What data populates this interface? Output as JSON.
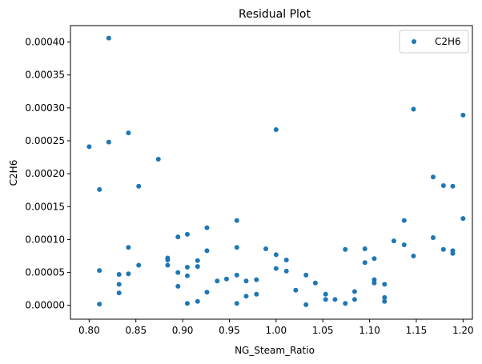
{
  "chart_data": {
    "type": "scatter",
    "title": "Residual Plot",
    "xlabel": "NG_Steam_Ratio",
    "ylabel": "C2H6",
    "xlim": [
      0.78,
      1.21
    ],
    "ylim": [
      -2.1e-05,
      0.000425
    ],
    "xticks": [
      0.8,
      0.85,
      0.9,
      0.95,
      1.0,
      1.05,
      1.1,
      1.15,
      1.2
    ],
    "xtick_labels": [
      "0.80",
      "0.85",
      "0.90",
      "0.95",
      "1.00",
      "1.05",
      "1.10",
      "1.15",
      "1.20"
    ],
    "yticks": [
      0,
      5e-05,
      0.0001,
      0.00015,
      0.0002,
      0.00025,
      0.0003,
      0.00035,
      0.0004
    ],
    "ytick_labels": [
      "0.00000",
      "0.00005",
      "0.00010",
      "0.00015",
      "0.00020",
      "0.00025",
      "0.00030",
      "0.00035",
      "0.00040"
    ],
    "grid": false,
    "legend": {
      "position": "top-right",
      "entries": [
        "C2H6"
      ]
    },
    "color": "#1f77b4",
    "series": [
      {
        "name": "C2H6",
        "points": [
          [
            0.8,
            0.000241
          ],
          [
            0.811,
            0.000176
          ],
          [
            0.811,
            5.3e-05
          ],
          [
            0.811,
            2e-06
          ],
          [
            0.821,
            0.000406
          ],
          [
            0.821,
            0.000248
          ],
          [
            0.832,
            4.7e-05
          ],
          [
            0.832,
            3.2e-05
          ],
          [
            0.832,
            1.9e-05
          ],
          [
            0.842,
            0.000262
          ],
          [
            0.842,
            8.8e-05
          ],
          [
            0.842,
            4.8e-05
          ],
          [
            0.853,
            0.000181
          ],
          [
            0.853,
            6.1e-05
          ],
          [
            0.874,
            0.000222
          ],
          [
            0.884,
            7.2e-05
          ],
          [
            0.884,
            6.9e-05
          ],
          [
            0.884,
            6.1e-05
          ],
          [
            0.895,
            0.000104
          ],
          [
            0.895,
            5e-05
          ],
          [
            0.895,
            2.9e-05
          ],
          [
            0.905,
            0.000108
          ],
          [
            0.905,
            5.8e-05
          ],
          [
            0.905,
            4.5e-05
          ],
          [
            0.905,
            3e-06
          ],
          [
            0.916,
            6.8e-05
          ],
          [
            0.916,
            5.9e-05
          ],
          [
            0.916,
            6e-06
          ],
          [
            0.926,
            0.000118
          ],
          [
            0.926,
            8.3e-05
          ],
          [
            0.926,
            2e-05
          ],
          [
            0.937,
            3.7e-05
          ],
          [
            0.947,
            4e-05
          ],
          [
            0.958,
            0.000129
          ],
          [
            0.958,
            8.8e-05
          ],
          [
            0.958,
            4.6e-05
          ],
          [
            0.958,
            3e-06
          ],
          [
            0.968,
            3.7e-05
          ],
          [
            0.968,
            1.4e-05
          ],
          [
            0.979,
            3.9e-05
          ],
          [
            0.979,
            1.7e-05
          ],
          [
            0.989,
            8.6e-05
          ],
          [
            1.0,
            0.000267
          ],
          [
            1.0,
            7.7e-05
          ],
          [
            1.0,
            5.6e-05
          ],
          [
            1.011,
            6.9e-05
          ],
          [
            1.011,
            5.2e-05
          ],
          [
            1.021,
            2.3e-05
          ],
          [
            1.032,
            4.6e-05
          ],
          [
            1.032,
            1e-06
          ],
          [
            1.042,
            3.4e-05
          ],
          [
            1.053,
            1.7e-05
          ],
          [
            1.053,
            9e-06
          ],
          [
            1.063,
            9e-06
          ],
          [
            1.074,
            8.5e-05
          ],
          [
            1.074,
            3e-06
          ],
          [
            1.084,
            2.1e-05
          ],
          [
            1.084,
            9e-06
          ],
          [
            1.095,
            8.6e-05
          ],
          [
            1.095,
            6.5e-05
          ],
          [
            1.105,
            7.1e-05
          ],
          [
            1.105,
            3.9e-05
          ],
          [
            1.105,
            3.4e-05
          ],
          [
            1.116,
            3.2e-05
          ],
          [
            1.116,
            1.2e-05
          ],
          [
            1.116,
            6e-06
          ],
          [
            1.126,
            9.8e-05
          ],
          [
            1.137,
            0.000129
          ],
          [
            1.137,
            9.2e-05
          ],
          [
            1.147,
            0.000298
          ],
          [
            1.147,
            7.5e-05
          ],
          [
            1.168,
            0.000195
          ],
          [
            1.168,
            0.000103
          ],
          [
            1.179,
            0.000182
          ],
          [
            1.179,
            8.5e-05
          ],
          [
            1.189,
            0.000181
          ],
          [
            1.189,
            8.3e-05
          ],
          [
            1.189,
            7.9e-05
          ],
          [
            1.2,
            0.000289
          ],
          [
            1.2,
            0.000132
          ]
        ]
      }
    ]
  }
}
